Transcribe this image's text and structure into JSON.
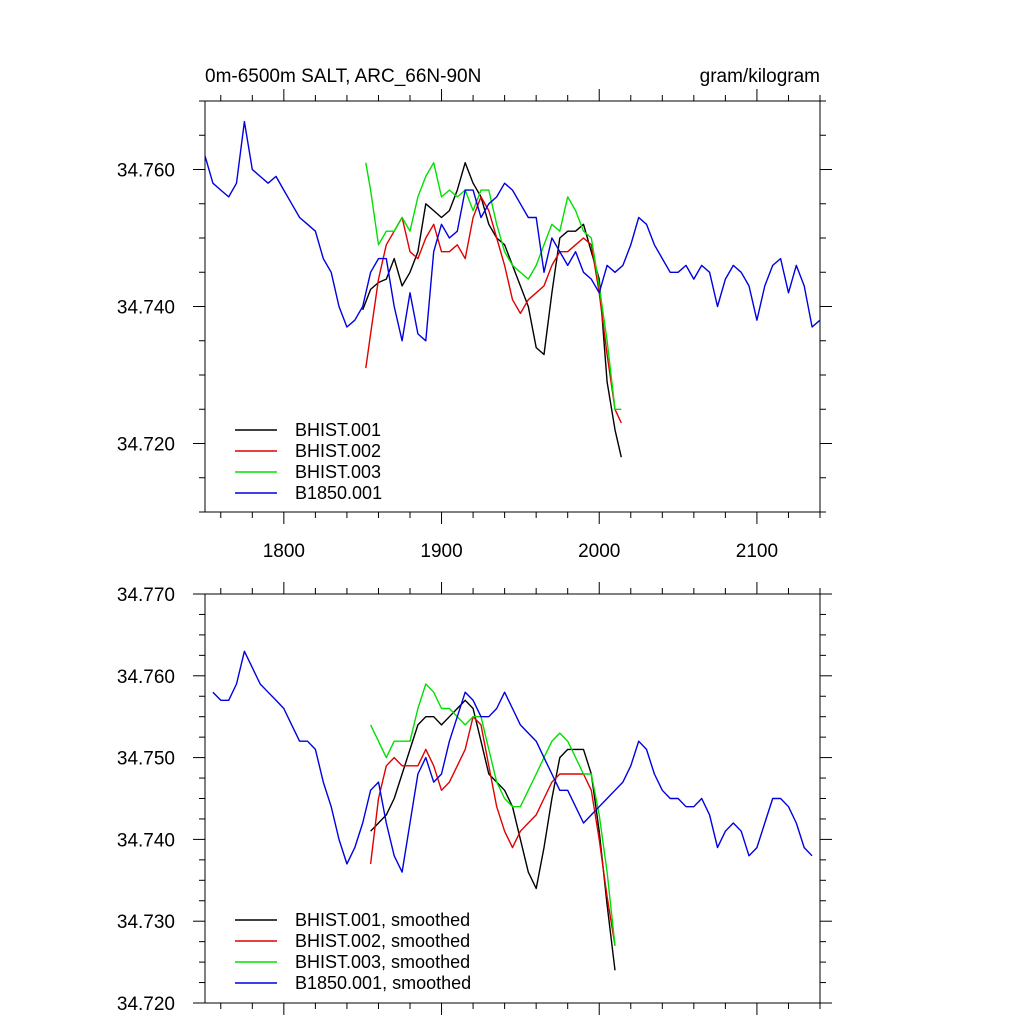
{
  "figure": {
    "title_left": "0m-6500m SALT, ARC_66N-90N",
    "title_right": "gram/kilogram"
  },
  "colors": {
    "BHIST.001": "#000000",
    "BHIST.002": "#e00000",
    "BHIST.003": "#00e000",
    "B1850.001": "#0000e0"
  },
  "chart_data": [
    {
      "type": "line",
      "title": "0m-6500m SALT, ARC_66N-90N",
      "units": "gram/kilogram",
      "xlim": [
        1750,
        2140
      ],
      "ylim": [
        34.71,
        34.77
      ],
      "x_ticks": [
        1800,
        1900,
        2000,
        2100
      ],
      "y_ticks": [
        34.72,
        34.74,
        34.76
      ],
      "y_tick_labels": [
        "34.720",
        "34.740",
        "34.760"
      ],
      "grid": false,
      "legend_position": "bottom-left",
      "series": [
        {
          "name": "BHIST.001",
          "color": "#000000",
          "x": [
            1850,
            1855,
            1860,
            1865,
            1870,
            1875,
            1880,
            1885,
            1890,
            1895,
            1900,
            1905,
            1910,
            1915,
            1920,
            1925,
            1930,
            1935,
            1940,
            1945,
            1950,
            1955,
            1960,
            1965,
            1970,
            1975,
            1980,
            1985,
            1990,
            1995,
            2000,
            2005,
            2010,
            2014
          ],
          "values": [
            34.7395,
            34.7425,
            34.7435,
            34.744,
            34.747,
            34.743,
            34.745,
            34.748,
            34.755,
            34.754,
            34.753,
            34.754,
            34.757,
            34.761,
            34.758,
            34.756,
            34.752,
            34.75,
            34.749,
            34.746,
            34.743,
            34.74,
            34.734,
            34.733,
            34.742,
            34.75,
            34.751,
            34.751,
            34.752,
            34.748,
            34.744,
            34.729,
            34.722,
            34.718
          ]
        },
        {
          "name": "BHIST.002",
          "color": "#e00000",
          "x": [
            1852,
            1855,
            1860,
            1865,
            1870,
            1875,
            1880,
            1885,
            1890,
            1895,
            1900,
            1905,
            1910,
            1915,
            1920,
            1925,
            1930,
            1935,
            1940,
            1945,
            1950,
            1955,
            1960,
            1965,
            1970,
            1975,
            1980,
            1985,
            1990,
            1995,
            2000,
            2005,
            2010,
            2014
          ],
          "values": [
            34.731,
            34.736,
            34.744,
            34.749,
            34.751,
            34.753,
            34.748,
            34.747,
            34.75,
            34.752,
            34.748,
            34.748,
            34.749,
            34.747,
            34.753,
            34.756,
            34.754,
            34.75,
            34.746,
            34.741,
            34.739,
            34.741,
            34.742,
            34.743,
            34.746,
            34.748,
            34.748,
            34.749,
            34.75,
            34.749,
            34.742,
            34.733,
            34.725,
            34.723
          ]
        },
        {
          "name": "BHIST.003",
          "color": "#00e000",
          "x": [
            1852,
            1855,
            1860,
            1865,
            1870,
            1875,
            1880,
            1885,
            1890,
            1895,
            1900,
            1905,
            1910,
            1915,
            1920,
            1925,
            1930,
            1935,
            1940,
            1945,
            1950,
            1955,
            1960,
            1965,
            1970,
            1975,
            1980,
            1985,
            1990,
            1995,
            2000,
            2005,
            2010,
            2014
          ],
          "values": [
            34.761,
            34.757,
            34.749,
            34.751,
            34.751,
            34.753,
            34.751,
            34.756,
            34.759,
            34.761,
            34.756,
            34.757,
            34.756,
            34.757,
            34.754,
            34.757,
            34.757,
            34.752,
            34.748,
            34.746,
            34.745,
            34.744,
            34.746,
            34.749,
            34.752,
            34.751,
            34.756,
            34.754,
            34.751,
            34.75,
            34.743,
            34.735,
            34.725,
            34.725
          ]
        },
        {
          "name": "B1850.001",
          "color": "#0000e0",
          "x": [
            1750,
            1755,
            1760,
            1765,
            1770,
            1775,
            1780,
            1785,
            1790,
            1795,
            1800,
            1805,
            1810,
            1815,
            1820,
            1825,
            1830,
            1835,
            1840,
            1845,
            1850,
            1855,
            1860,
            1865,
            1870,
            1875,
            1880,
            1885,
            1890,
            1895,
            1900,
            1905,
            1910,
            1915,
            1920,
            1925,
            1930,
            1935,
            1940,
            1945,
            1950,
            1955,
            1960,
            1965,
            1970,
            1975,
            1980,
            1985,
            1990,
            1995,
            2000,
            2005,
            2010,
            2015,
            2020,
            2025,
            2030,
            2035,
            2040,
            2045,
            2050,
            2055,
            2060,
            2065,
            2070,
            2075,
            2080,
            2085,
            2090,
            2095,
            2100,
            2105,
            2110,
            2115,
            2120,
            2125,
            2130,
            2135,
            2140
          ],
          "values": [
            34.762,
            34.758,
            34.757,
            34.756,
            34.758,
            34.767,
            34.76,
            34.759,
            34.758,
            34.759,
            34.757,
            34.755,
            34.753,
            34.752,
            34.751,
            34.747,
            34.745,
            34.74,
            34.737,
            34.738,
            34.74,
            34.745,
            34.747,
            34.747,
            34.74,
            34.735,
            34.742,
            34.736,
            34.735,
            34.748,
            34.752,
            34.75,
            34.751,
            34.757,
            34.757,
            34.753,
            34.755,
            34.756,
            34.758,
            34.757,
            34.755,
            34.753,
            34.753,
            34.745,
            34.75,
            34.748,
            34.746,
            34.748,
            34.745,
            34.744,
            34.742,
            34.746,
            34.745,
            34.746,
            34.749,
            34.753,
            34.752,
            34.749,
            34.747,
            34.745,
            34.745,
            34.746,
            34.744,
            34.746,
            34.745,
            34.74,
            34.744,
            34.746,
            34.745,
            34.743,
            34.738,
            34.743,
            34.746,
            34.747,
            34.742,
            34.746,
            34.743,
            34.737,
            34.738
          ]
        }
      ]
    },
    {
      "type": "line",
      "xlim": [
        1750,
        2140
      ],
      "ylim": [
        34.72,
        34.77
      ],
      "x_ticks": [
        1800,
        1900,
        2000,
        2100
      ],
      "y_ticks": [
        34.72,
        34.73,
        34.74,
        34.75,
        34.76,
        34.77
      ],
      "y_tick_labels": [
        "34.720",
        "34.730",
        "34.740",
        "34.750",
        "34.760",
        "34.770"
      ],
      "grid": false,
      "legend_position": "bottom-left",
      "series": [
        {
          "name": "BHIST.001, smoothed",
          "color": "#000000",
          "x": [
            1855,
            1860,
            1865,
            1870,
            1875,
            1880,
            1885,
            1890,
            1895,
            1900,
            1905,
            1910,
            1915,
            1920,
            1925,
            1930,
            1935,
            1940,
            1945,
            1950,
            1955,
            1960,
            1965,
            1970,
            1975,
            1980,
            1985,
            1990,
            1995,
            2000,
            2005,
            2010
          ],
          "values": [
            34.741,
            34.742,
            34.743,
            34.745,
            34.748,
            34.751,
            34.754,
            34.755,
            34.755,
            34.754,
            34.755,
            34.756,
            34.757,
            34.756,
            34.752,
            34.748,
            34.747,
            34.746,
            34.744,
            34.74,
            34.736,
            34.734,
            34.739,
            34.745,
            34.75,
            34.751,
            34.751,
            34.751,
            34.748,
            34.741,
            34.732,
            34.724
          ]
        },
        {
          "name": "BHIST.002, smoothed",
          "color": "#e00000",
          "x": [
            1855,
            1860,
            1865,
            1870,
            1875,
            1880,
            1885,
            1890,
            1895,
            1900,
            1905,
            1910,
            1915,
            1920,
            1925,
            1930,
            1935,
            1940,
            1945,
            1950,
            1955,
            1960,
            1965,
            1970,
            1975,
            1980,
            1985,
            1990,
            1995,
            2000,
            2005,
            2010
          ],
          "values": [
            34.737,
            34.745,
            34.749,
            34.75,
            34.749,
            34.749,
            34.749,
            34.751,
            34.749,
            34.746,
            34.747,
            34.749,
            34.751,
            34.755,
            34.754,
            34.749,
            34.744,
            34.741,
            34.739,
            34.741,
            34.742,
            34.743,
            34.745,
            34.747,
            34.748,
            34.748,
            34.748,
            34.748,
            34.746,
            34.74,
            34.733,
            34.727
          ]
        },
        {
          "name": "BHIST.003, smoothed",
          "color": "#00e000",
          "x": [
            1855,
            1860,
            1865,
            1870,
            1875,
            1880,
            1885,
            1890,
            1895,
            1900,
            1905,
            1910,
            1915,
            1920,
            1925,
            1930,
            1935,
            1940,
            1945,
            1950,
            1955,
            1960,
            1965,
            1970,
            1975,
            1980,
            1985,
            1990,
            1995,
            2000,
            2005,
            2010
          ],
          "values": [
            34.754,
            34.752,
            34.75,
            34.752,
            34.752,
            34.752,
            34.756,
            34.759,
            34.758,
            34.756,
            34.756,
            34.755,
            34.754,
            34.755,
            34.755,
            34.751,
            34.747,
            34.745,
            34.744,
            34.744,
            34.746,
            34.748,
            34.75,
            34.752,
            34.753,
            34.752,
            34.75,
            34.748,
            34.748,
            34.743,
            34.736,
            34.727
          ]
        },
        {
          "name": "B1850.001, smoothed",
          "color": "#0000e0",
          "x": [
            1755,
            1760,
            1765,
            1770,
            1775,
            1780,
            1785,
            1790,
            1795,
            1800,
            1805,
            1810,
            1815,
            1820,
            1825,
            1830,
            1835,
            1840,
            1845,
            1850,
            1855,
            1860,
            1865,
            1870,
            1875,
            1880,
            1885,
            1890,
            1895,
            1900,
            1905,
            1910,
            1915,
            1920,
            1925,
            1930,
            1935,
            1940,
            1945,
            1950,
            1955,
            1960,
            1965,
            1970,
            1975,
            1980,
            1985,
            1990,
            1995,
            2000,
            2005,
            2010,
            2015,
            2020,
            2025,
            2030,
            2035,
            2040,
            2045,
            2050,
            2055,
            2060,
            2065,
            2070,
            2075,
            2080,
            2085,
            2090,
            2095,
            2100,
            2105,
            2110,
            2115,
            2120,
            2125,
            2130,
            2135
          ],
          "values": [
            34.758,
            34.757,
            34.757,
            34.759,
            34.763,
            34.761,
            34.759,
            34.758,
            34.757,
            34.756,
            34.754,
            34.752,
            34.752,
            34.751,
            34.747,
            34.744,
            34.74,
            34.737,
            34.739,
            34.742,
            34.746,
            34.747,
            34.742,
            34.738,
            34.736,
            34.742,
            34.748,
            34.75,
            34.747,
            34.748,
            34.752,
            34.755,
            34.758,
            34.757,
            34.755,
            34.755,
            34.756,
            34.758,
            34.756,
            34.754,
            34.753,
            34.752,
            34.75,
            34.748,
            34.746,
            34.746,
            34.744,
            34.742,
            34.743,
            34.744,
            34.745,
            34.746,
            34.747,
            34.749,
            34.752,
            34.751,
            34.748,
            34.746,
            34.745,
            34.745,
            34.744,
            34.744,
            34.745,
            34.743,
            34.739,
            34.741,
            34.742,
            34.741,
            34.738,
            34.739,
            34.742,
            34.745,
            34.745,
            34.744,
            34.742,
            34.739,
            34.738
          ]
        }
      ]
    }
  ]
}
